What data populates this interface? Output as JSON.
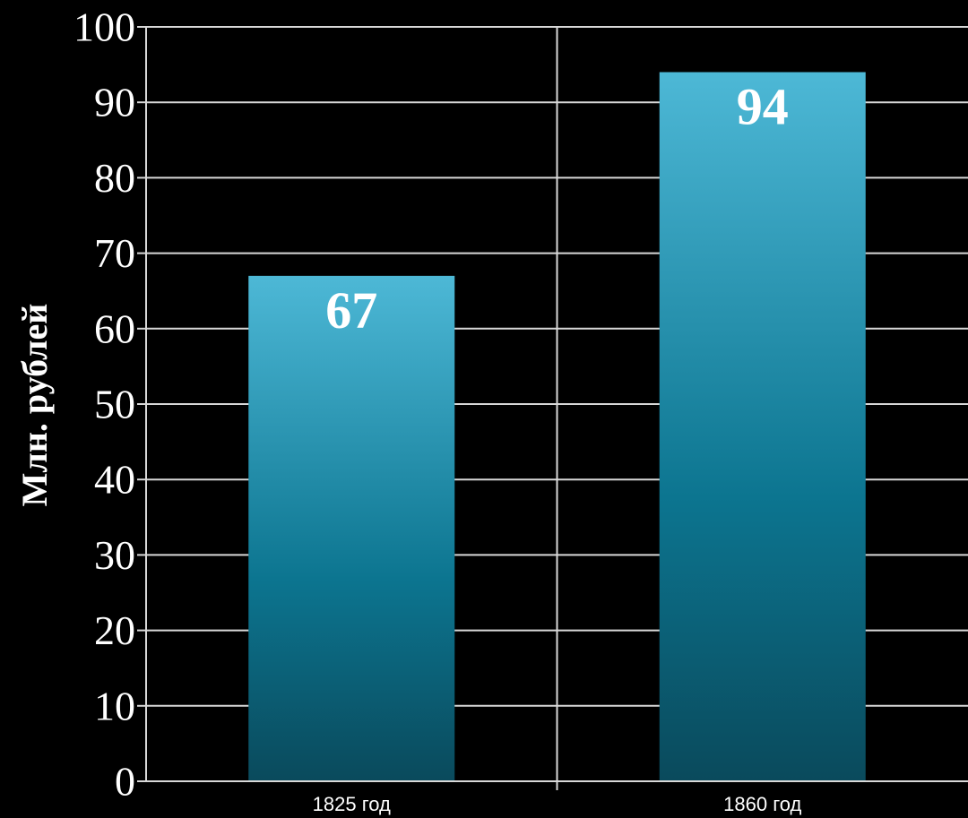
{
  "chart_data": {
    "type": "bar",
    "title": "",
    "xlabel": "",
    "ylabel": "Млн. рублей",
    "categories": [
      "1825 год",
      "1860 год"
    ],
    "values": [
      67,
      94
    ],
    "data_labels": [
      "67",
      "94"
    ],
    "ylim": [
      0,
      100
    ],
    "yticks": [
      0,
      10,
      20,
      30,
      40,
      50,
      60,
      70,
      80,
      90,
      100
    ],
    "grid": true,
    "legend": "none",
    "colors": {
      "background": "#000000",
      "bar_top": "#4db8d6",
      "bar_mid": "#0c7590",
      "bar_bottom": "#0a4a5c",
      "grid": "#d8d8d8",
      "text": "#ffffff"
    }
  }
}
